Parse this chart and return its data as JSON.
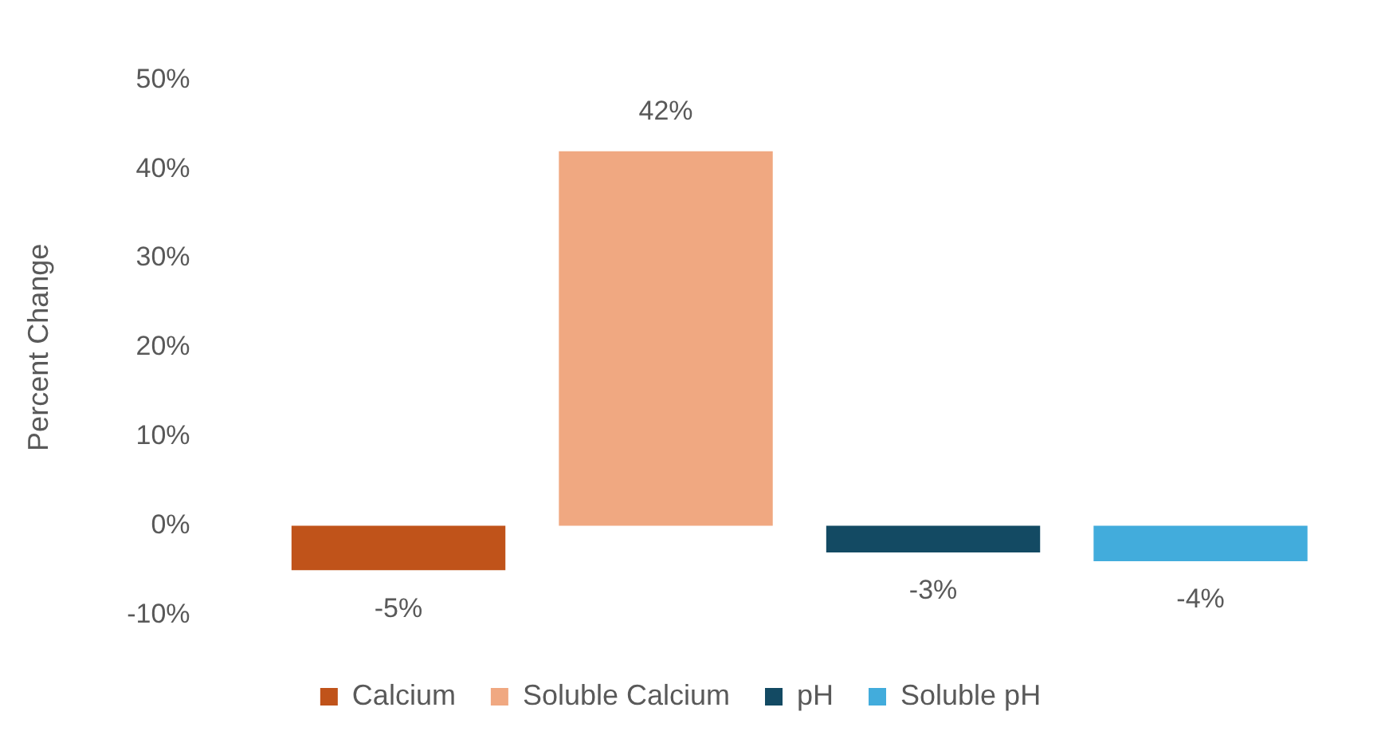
{
  "chart_data": {
    "type": "bar",
    "ylabel": "Percent Change",
    "categories": [
      null
    ],
    "series": [
      {
        "name": "Calcium",
        "color": "#c0531a",
        "values": [
          -5
        ],
        "value_labels": [
          "-5%"
        ]
      },
      {
        "name": "Soluble Calcium",
        "color": "#f0a881",
        "values": [
          42
        ],
        "value_labels": [
          "42%"
        ]
      },
      {
        "name": "pH",
        "color": "#134a63",
        "values": [
          -3
        ],
        "value_labels": [
          "-3%"
        ]
      },
      {
        "name": "Soluble pH",
        "color": "#42acdc",
        "values": [
          -4
        ],
        "value_labels": [
          "-4%"
        ]
      }
    ],
    "ylim": [
      -10,
      50
    ],
    "yticks": [
      {
        "value": -10,
        "label": "-10%"
      },
      {
        "value": 0,
        "label": "0%"
      },
      {
        "value": 10,
        "label": "10%"
      },
      {
        "value": 20,
        "label": "20%"
      },
      {
        "value": 30,
        "label": "30%"
      },
      {
        "value": 40,
        "label": "40%"
      },
      {
        "value": 50,
        "label": "50%"
      }
    ],
    "grid": false,
    "legend": "bottom"
  }
}
